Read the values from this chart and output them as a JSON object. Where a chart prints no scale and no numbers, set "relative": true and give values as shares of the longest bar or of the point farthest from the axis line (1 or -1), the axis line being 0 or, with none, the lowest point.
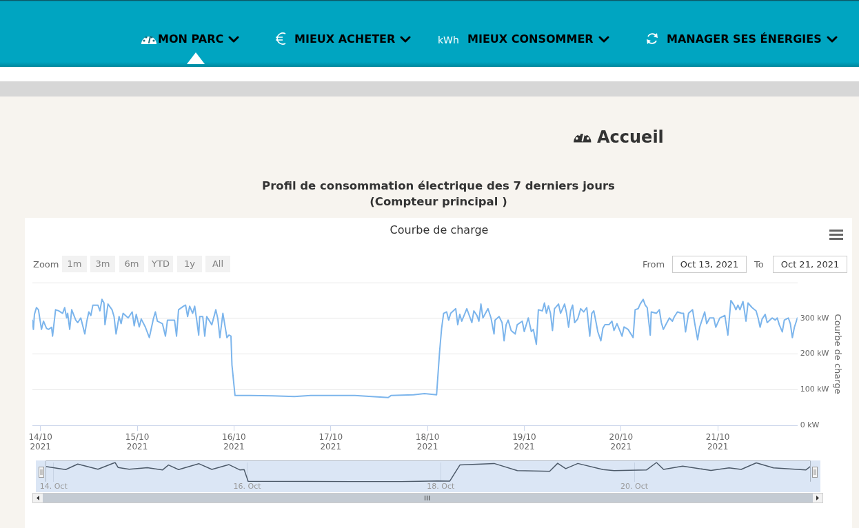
{
  "chart_data": [
    {
      "type": "line",
      "title": "Profil de consommation électrique des 7 derniers jours\n(Compteur principal )",
      "subtitle": "Courbe de charge",
      "ylabel": "Courbe de charge",
      "annotations": [
        "MON PARC",
        "MIEUX ACHETER",
        "kWh",
        "MIEUX CONSOMMER",
        "MANAGER SES ÉNERGIES",
        "Accueil",
        "Zoom",
        "1m",
        "3m",
        "6m",
        "YTD",
        "1y",
        "All",
        "From",
        "Oct 13, 2021",
        "To",
        "Oct 21, 2021"
      ],
      "color": "#7cb5ec",
      "grid": "y",
      "xlim": [
        "2021-10-13T22:00",
        "2021-10-21T19:45"
      ],
      "xticks": [
        {
          "value": "2021-10-14",
          "label": "14/10\n2021"
        },
        {
          "value": "2021-10-15",
          "label": "15/10\n2021"
        },
        {
          "value": "2021-10-16",
          "label": "16/10\n2021"
        },
        {
          "value": "2021-10-17",
          "label": "17/10\n2021"
        },
        {
          "value": "2021-10-18",
          "label": "18/10\n2021"
        },
        {
          "value": "2021-10-19",
          "label": "19/10\n2021"
        },
        {
          "value": "2021-10-20",
          "label": "20/10\n2021"
        },
        {
          "value": "2021-10-21",
          "label": "21/10\n2021"
        }
      ],
      "ylim": [
        0,
        400
      ],
      "yticks": [
        {
          "value": 0,
          "label": "0 kW"
        },
        {
          "value": 100,
          "label": "100 kW"
        },
        {
          "value": 200,
          "label": "200 kW"
        },
        {
          "value": 300,
          "label": "300 kW"
        },
        {
          "value": 400,
          "label": null
        }
      ],
      "x": [
        "2021-10-13T22:00",
        "2021-10-13T22:15",
        "2021-10-13T22:30",
        "2021-10-13T23:00",
        "2021-10-13T23:30",
        "2021-10-14T00:15",
        "2021-10-14T00:45",
        "2021-10-14T01:30",
        "2021-10-14T02:00",
        "2021-10-14T02:45",
        "2021-10-14T03:00",
        "2021-10-14T03:45",
        "2021-10-14T04:30",
        "2021-10-14T05:30",
        "2021-10-14T06:00",
        "2021-10-14T06:30",
        "2021-10-14T06:45",
        "2021-10-14T07:15",
        "2021-10-14T07:45",
        "2021-10-14T08:45",
        "2021-10-14T09:15",
        "2021-10-14T10:00",
        "2021-10-14T11:00",
        "2021-10-14T11:30",
        "2021-10-14T12:00",
        "2021-10-14T12:30",
        "2021-10-14T13:00",
        "2021-10-14T14:15",
        "2021-10-14T14:45",
        "2021-10-14T15:15",
        "2021-10-14T15:45",
        "2021-10-14T16:00",
        "2021-10-14T16:45",
        "2021-10-14T17:45",
        "2021-10-14T18:15",
        "2021-10-14T18:45",
        "2021-10-14T19:30",
        "2021-10-14T20:00",
        "2021-10-14T20:30",
        "2021-10-14T21:45",
        "2021-10-14T22:45",
        "2021-10-14T23:15",
        "2021-10-14T23:45",
        "2021-10-15T00:30",
        "2021-10-15T01:00",
        "2021-10-15T02:00",
        "2021-10-15T03:00",
        "2021-10-15T04:00",
        "2021-10-15T04:30",
        "2021-10-15T05:00",
        "2021-10-15T06:15",
        "2021-10-15T07:00",
        "2021-10-15T07:30",
        "2021-10-15T09:15",
        "2021-10-15T09:45",
        "2021-10-15T10:15",
        "2021-10-15T11:30",
        "2021-10-15T12:00",
        "2021-10-15T12:30",
        "2021-10-15T13:00",
        "2021-10-15T13:45",
        "2021-10-15T14:15",
        "2021-10-15T14:45",
        "2021-10-15T15:15",
        "2021-10-15T15:30",
        "2021-10-15T16:15",
        "2021-10-15T16:45",
        "2021-10-15T17:15",
        "2021-10-15T18:30",
        "2021-10-15T19:30",
        "2021-10-15T20:00",
        "2021-10-15T20:30",
        "2021-10-15T21:15",
        "2021-10-15T22:15",
        "2021-10-15T22:45",
        "2021-10-15T23:15",
        "2021-10-15T23:30",
        "2021-10-16T00:15",
        "2021-10-16T04:00",
        "2021-10-16T09:30",
        "2021-10-16T15:00",
        "2021-10-16T19:00",
        "2021-10-17T00:30",
        "2021-10-17T06:00",
        "2021-10-17T11:30",
        "2021-10-17T14:15",
        "2021-10-17T15:00",
        "2021-10-17T20:30",
        "2021-10-17T23:15",
        "2021-10-18T02:15",
        "2021-10-18T03:00",
        "2021-10-18T03:30",
        "2021-10-18T04:00",
        "2021-10-18T04:45",
        "2021-10-18T05:15",
        "2021-10-18T05:45",
        "2021-10-18T07:00",
        "2021-10-18T07:30",
        "2021-10-18T08:00",
        "2021-10-18T08:30",
        "2021-10-18T09:45",
        "2021-10-18T11:00",
        "2021-10-18T11:30",
        "2021-10-18T12:15",
        "2021-10-18T12:45",
        "2021-10-18T13:15",
        "2021-10-18T13:45",
        "2021-10-18T15:00",
        "2021-10-18T15:45",
        "2021-10-18T16:30",
        "2021-10-18T16:45",
        "2021-10-18T17:45",
        "2021-10-18T18:30",
        "2021-10-18T19:00",
        "2021-10-18T19:30",
        "2021-10-18T20:00",
        "2021-10-18T20:45",
        "2021-10-18T21:45",
        "2021-10-18T22:15",
        "2021-10-18T23:30",
        "2021-10-19T00:00",
        "2021-10-19T01:00",
        "2021-10-19T01:45",
        "2021-10-19T02:15",
        "2021-10-19T03:00",
        "2021-10-19T03:30",
        "2021-10-19T04:30",
        "2021-10-19T05:00",
        "2021-10-19T05:30",
        "2021-10-19T06:00",
        "2021-10-19T06:30",
        "2021-10-19T07:00",
        "2021-10-19T07:30",
        "2021-10-19T08:30",
        "2021-10-19T09:00",
        "2021-10-19T10:00",
        "2021-10-19T10:30",
        "2021-10-19T11:00",
        "2021-10-19T11:30",
        "2021-10-19T12:00",
        "2021-10-19T12:30",
        "2021-10-19T13:15",
        "2021-10-19T14:00",
        "2021-10-19T14:45",
        "2021-10-19T15:30",
        "2021-10-19T16:15",
        "2021-10-19T16:45",
        "2021-10-19T17:15",
        "2021-10-19T17:45",
        "2021-10-19T18:15",
        "2021-10-19T19:00",
        "2021-10-19T19:30",
        "2021-10-19T20:00",
        "2021-10-19T21:00",
        "2021-10-19T21:45",
        "2021-10-19T22:15",
        "2021-10-19T23:00",
        "2021-10-20T00:15",
        "2021-10-20T00:45",
        "2021-10-20T01:45",
        "2021-10-20T03:00",
        "2021-10-20T03:30",
        "2021-10-20T04:15",
        "2021-10-20T04:45",
        "2021-10-20T05:30",
        "2021-10-20T06:00",
        "2021-10-20T06:30",
        "2021-10-20T07:15",
        "2021-10-20T07:30",
        "2021-10-20T08:45",
        "2021-10-20T09:30",
        "2021-10-20T10:00",
        "2021-10-20T10:30",
        "2021-10-20T11:15",
        "2021-10-20T12:00",
        "2021-10-20T12:45",
        "2021-10-20T13:15",
        "2021-10-20T14:00",
        "2021-10-20T15:00",
        "2021-10-20T15:30",
        "2021-10-20T16:00",
        "2021-10-20T16:45",
        "2021-10-20T17:45",
        "2021-10-20T18:15",
        "2021-10-20T19:00",
        "2021-10-20T19:30",
        "2021-10-20T20:15",
        "2021-10-20T20:45",
        "2021-10-20T21:15",
        "2021-10-20T22:00",
        "2021-10-20T23:00",
        "2021-10-20T23:30",
        "2021-10-21T00:30",
        "2021-10-21T01:45",
        "2021-10-21T02:30",
        "2021-10-21T03:15",
        "2021-10-21T04:00",
        "2021-10-21T04:30",
        "2021-10-21T05:00",
        "2021-10-21T05:30",
        "2021-10-21T06:15",
        "2021-10-21T07:00",
        "2021-10-21T07:30",
        "2021-10-21T08:30",
        "2021-10-21T09:30",
        "2021-10-21T10:00",
        "2021-10-21T10:30",
        "2021-10-21T11:00",
        "2021-10-21T11:45",
        "2021-10-21T12:15",
        "2021-10-21T13:30",
        "2021-10-21T14:15",
        "2021-10-21T14:45",
        "2021-10-21T15:15",
        "2021-10-21T16:00",
        "2021-10-21T16:30",
        "2021-10-21T17:30",
        "2021-10-21T18:00",
        "2021-10-21T18:30",
        "2021-10-21T19:00",
        "2021-10-21T19:45"
      ],
      "values": [
        295,
        269,
        311,
        330,
        324,
        269,
        292,
        272,
        269,
        275,
        250,
        324,
        321,
        314,
        330,
        301,
        314,
        269,
        324,
        295,
        288,
        301,
        256,
        292,
        318,
        308,
        337,
        337,
        321,
        353,
        343,
        282,
        340,
        324,
        305,
        256,
        305,
        285,
        314,
        301,
        318,
        279,
        311,
        276,
        298,
        276,
        246,
        298,
        318,
        292,
        285,
        250,
        295,
        295,
        250,
        324,
        334,
        337,
        305,
        334,
        314,
        334,
        295,
        253,
        305,
        305,
        250,
        305,
        282,
        324,
        298,
        246,
        314,
        246,
        253,
        250,
        169,
        84,
        84,
        83,
        81,
        84,
        84,
        84,
        80,
        78,
        84,
        86,
        89,
        86,
        207,
        272,
        314,
        318,
        295,
        314,
        327,
        282,
        311,
        292,
        327,
        288,
        321,
        308,
        292,
        340,
        301,
        327,
        301,
        256,
        295,
        305,
        288,
        237,
        282,
        295,
        266,
        256,
        282,
        292,
        263,
        301,
        263,
        269,
        227,
        324,
        321,
        343,
        314,
        335,
        314,
        266,
        327,
        340,
        314,
        340,
        314,
        275,
        321,
        337,
        288,
        298,
        327,
        318,
        330,
        250,
        314,
        321,
        292,
        262,
        237,
        272,
        282,
        282,
        292,
        266,
        285,
        250,
        276,
        269,
        246,
        324,
        327,
        340,
        353,
        337,
        330,
        253,
        318,
        314,
        324,
        288,
        269,
        285,
        301,
        292,
        305,
        318,
        314,
        314,
        262,
        314,
        324,
        288,
        240,
        275,
        301,
        318,
        285,
        301,
        301,
        275,
        301,
        308,
        253,
        350,
        337,
        324,
        337,
        324,
        347,
        292,
        343,
        330,
        321,
        301,
        275,
        298,
        311,
        288,
        301,
        295,
        301,
        282,
        262,
        295,
        301,
        285,
        246,
        275,
        301
      ]
    },
    {
      "type": "line",
      "relative": true,
      "color": "#4d5a69",
      "grid": "x",
      "tick_labels": "x",
      "xlim": [
        "2021-10-13T22:00",
        "2021-10-21T19:45"
      ],
      "xticks": [
        {
          "value": "2021-10-14",
          "label": "14. Oct"
        },
        {
          "value": "2021-10-16",
          "label": "16. Oct"
        },
        {
          "value": "2021-10-18",
          "label": "18. Oct"
        },
        {
          "value": "2021-10-20",
          "label": "20. Oct"
        }
      ],
      "x": [
        "2021-10-13T22:00",
        "2021-10-14T03:00",
        "2021-10-14T06:00",
        "2021-10-14T11:00",
        "2021-10-14T15:15",
        "2021-10-14T16:00",
        "2021-10-14T18:45",
        "2021-10-14T23:15",
        "2021-10-15T03:00",
        "2021-10-15T04:30",
        "2021-10-15T07:00",
        "2021-10-15T12:00",
        "2021-10-15T15:15",
        "2021-10-15T19:30",
        "2021-10-15T22:15",
        "2021-10-15T23:15",
        "2021-10-16T00:15",
        "2021-10-16T15:00",
        "2021-10-17T14:15",
        "2021-10-17T23:15",
        "2021-10-18T02:15",
        "2021-10-18T04:45",
        "2021-10-18T13:15",
        "2021-10-18T19:00",
        "2021-10-19T03:00",
        "2021-10-19T05:00",
        "2021-10-19T07:00",
        "2021-10-19T10:00",
        "2021-10-19T16:15",
        "2021-10-19T19:00",
        "2021-10-20T03:00",
        "2021-10-20T05:30",
        "2021-10-20T07:15",
        "2021-10-20T12:00",
        "2021-10-20T19:00",
        "2021-10-20T23:30",
        "2021-10-21T02:30",
        "2021-10-21T06:15",
        "2021-10-21T10:30",
        "2021-10-21T18:30",
        "2021-10-21T19:45"
      ],
      "values": [
        0.79,
        0.63,
        0.92,
        0.65,
        1.0,
        0.74,
        0.65,
        0.73,
        0.61,
        0.87,
        0.63,
        0.94,
        0.64,
        0.89,
        0.61,
        0.63,
        0.02,
        0.01,
        0.0,
        0.04,
        0.03,
        0.87,
        0.95,
        0.58,
        0.54,
        0.96,
        0.68,
        0.95,
        0.63,
        0.58,
        0.61,
        1.0,
        0.64,
        0.81,
        0.59,
        0.72,
        0.64,
        0.98,
        0.72,
        0.61,
        0.81
      ]
    }
  ]
}
